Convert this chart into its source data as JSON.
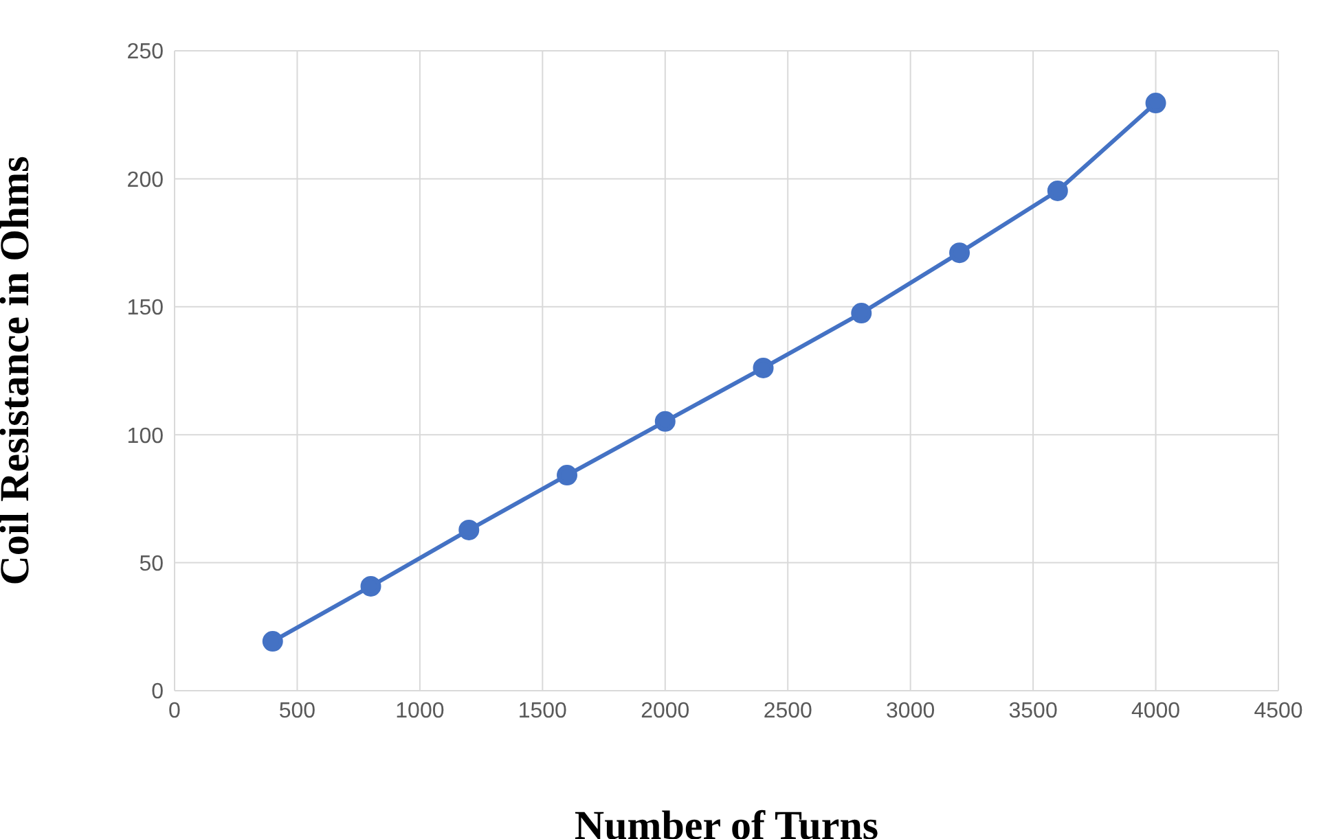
{
  "chart_data": {
    "type": "line",
    "xlabel": "Number of Turns",
    "ylabel": "Coil Resistance in Ohms",
    "x": [
      400,
      800,
      1200,
      1600,
      2000,
      2400,
      2800,
      3200,
      3600,
      4000
    ],
    "series": [
      {
        "color": "#4472c4",
        "values": [
          19.3,
          40.8,
          62.8,
          84.2,
          105.2,
          126.1,
          147.5,
          171.1,
          195.3,
          229.6
        ]
      }
    ],
    "xlim": [
      0,
      4500
    ],
    "xticks": [
      0,
      500,
      1000,
      1500,
      2000,
      2500,
      3000,
      3500,
      4000,
      4500
    ],
    "ylim": [
      0,
      250
    ],
    "yticks": [
      0,
      50,
      100,
      150,
      200,
      250
    ],
    "grid": true,
    "marker": "circle",
    "line_style": "solid"
  }
}
